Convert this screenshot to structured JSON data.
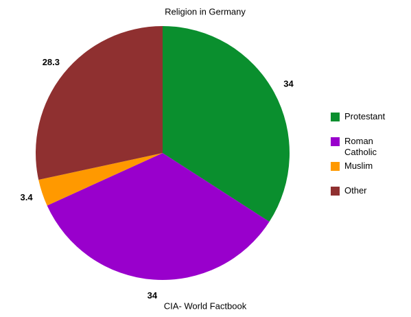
{
  "chart_data": {
    "type": "pie",
    "title": "Religion in Germany",
    "source": "CIA- World Factbook",
    "categories": [
      "Protestant",
      "Roman Catholic",
      "Muslim",
      "Other"
    ],
    "values": [
      34,
      34,
      3.4,
      28.3
    ],
    "colors": [
      "#0a8f2e",
      "#9900cc",
      "#ff9900",
      "#8f3030"
    ],
    "legend": "right"
  }
}
